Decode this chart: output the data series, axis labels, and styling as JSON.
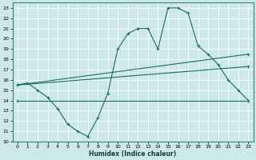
{
  "bg_color": "#cde8e8",
  "grid_color": "#b0d4d4",
  "line_color": "#1a6b6b",
  "xlabel": "Humidex (Indice chaleur)",
  "xlim": [
    -0.5,
    23.5
  ],
  "ylim": [
    10,
    23.5
  ],
  "xtick_labels": [
    "0",
    "1",
    "2",
    "3",
    "4",
    "5",
    "6",
    "7",
    "8",
    "9",
    "10",
    "11",
    "12",
    "13",
    "14",
    "15",
    "16",
    "17",
    "18",
    "19",
    "20",
    "21",
    "22",
    "23"
  ],
  "xtick_vals": [
    0,
    1,
    2,
    3,
    4,
    5,
    6,
    7,
    8,
    9,
    10,
    11,
    12,
    13,
    14,
    15,
    16,
    17,
    18,
    19,
    20,
    21,
    22,
    23
  ],
  "ytick_vals": [
    10,
    11,
    12,
    13,
    14,
    15,
    16,
    17,
    18,
    19,
    20,
    21,
    22,
    23
  ],
  "curve1_x": [
    0,
    1,
    2,
    3,
    4,
    5,
    6,
    7,
    8,
    9,
    10,
    11,
    12,
    13,
    14,
    15,
    16,
    17,
    18,
    19,
    20,
    21,
    22,
    23
  ],
  "curve1_y": [
    15.5,
    15.7,
    15.0,
    14.3,
    13.2,
    11.7,
    11.0,
    10.5,
    12.3,
    14.7,
    19.0,
    20.5,
    21.0,
    21.0,
    19.0,
    23.0,
    23.0,
    22.5,
    19.3,
    18.5,
    17.5,
    16.0,
    15.0,
    14.0
  ],
  "curve2_x": [
    0,
    23
  ],
  "curve2_y": [
    15.5,
    18.5
  ],
  "curve3_x": [
    0,
    23
  ],
  "curve3_y": [
    15.5,
    17.3
  ],
  "curve4_x": [
    0,
    23
  ],
  "curve4_y": [
    14.0,
    14.0
  ]
}
